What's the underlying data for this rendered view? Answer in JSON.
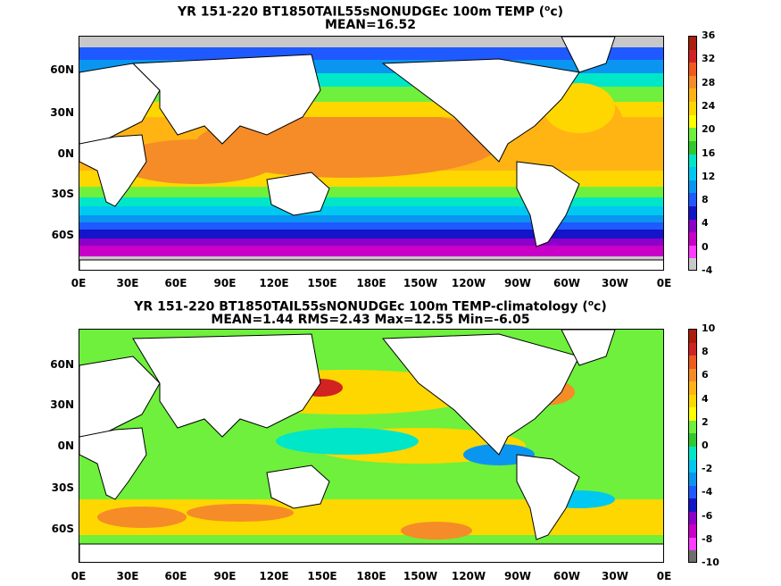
{
  "panels": [
    {
      "title_line1_pre": "YR 151-220 BT1850TAIL55sNONUDGEc 100m TEMP (",
      "title_line1_sup": "o",
      "title_line1_post": "c)",
      "title_line2": "MEAN=16.52",
      "colorbar_labels": [
        "36",
        "32",
        "28",
        "24",
        "20",
        "16",
        "12",
        "8",
        "4",
        "0",
        "-4"
      ],
      "colorbar_colors": [
        "#aa1e0a",
        "#d22323",
        "#f05a1e",
        "#f58c28",
        "#ffb414",
        "#ffd700",
        "#ffff00",
        "#6ef03c",
        "#32c832",
        "#00e6c8",
        "#00c8f0",
        "#0a96f0",
        "#1e5aff",
        "#1414c8",
        "#8c00c8",
        "#c800c8",
        "#ff3cff",
        "#c8c8c8"
      ]
    },
    {
      "title_line1_pre": "YR 151-220 BT1850TAIL55sNONUDGEc 100m TEMP-climatology (",
      "title_line1_sup": "o",
      "title_line1_post": "c)",
      "title_line2": "MEAN=1.44  RMS=2.43  Max=12.55  Min=-6.05",
      "colorbar_labels": [
        "10",
        "8",
        "6",
        "4",
        "2",
        "0",
        "-2",
        "-4",
        "-6",
        "-8",
        "-10"
      ],
      "colorbar_colors": [
        "#aa1e0a",
        "#d22323",
        "#f05a1e",
        "#f58c28",
        "#ffb414",
        "#ffd700",
        "#ffff00",
        "#6ef03c",
        "#32c832",
        "#00e6c8",
        "#00c8f0",
        "#0a96f0",
        "#1e5aff",
        "#1414c8",
        "#8c00c8",
        "#c800c8",
        "#ff3cff",
        "#6e6e6e"
      ]
    }
  ],
  "lat_labels": [
    "60N",
    "30N",
    "0N",
    "30S",
    "60S"
  ],
  "lon_labels": [
    "0E",
    "30E",
    "60E",
    "90E",
    "120E",
    "150E",
    "180E",
    "150W",
    "120W",
    "90W",
    "60W",
    "30W",
    "0E"
  ]
}
